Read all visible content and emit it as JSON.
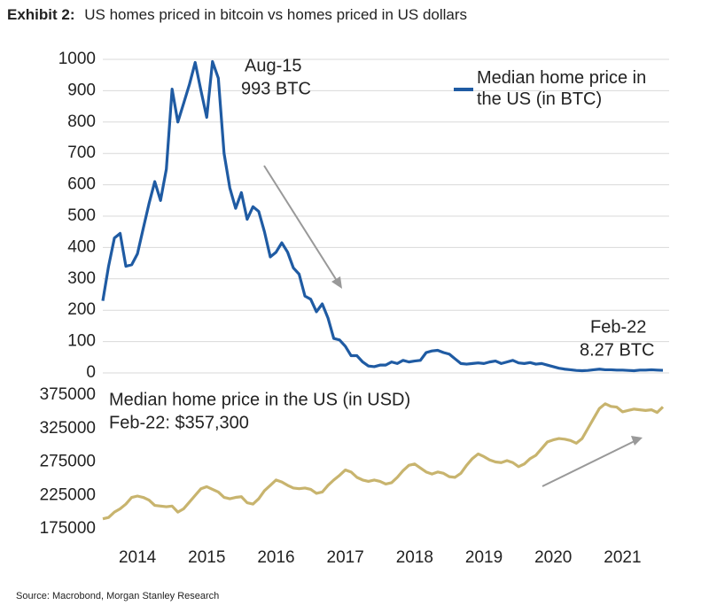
{
  "chart_data": {
    "type": "line",
    "title_prefix": "Exhibit 2:",
    "title": "US homes priced in bitcoin vs homes priced in US dollars",
    "source": "Source: Macrobond, Morgan Stanley Research",
    "x": [
      2014,
      2014.083,
      2014.167,
      2014.25,
      2014.333,
      2014.417,
      2014.5,
      2014.583,
      2014.667,
      2014.75,
      2014.833,
      2014.917,
      2015,
      2015.083,
      2015.167,
      2015.25,
      2015.333,
      2015.417,
      2015.5,
      2015.583,
      2015.667,
      2015.75,
      2015.833,
      2015.917,
      2016,
      2016.083,
      2016.167,
      2016.25,
      2016.333,
      2016.417,
      2016.5,
      2016.583,
      2016.667,
      2016.75,
      2016.833,
      2016.917,
      2017,
      2017.083,
      2017.167,
      2017.25,
      2017.333,
      2017.417,
      2017.5,
      2017.583,
      2017.667,
      2017.75,
      2017.833,
      2017.917,
      2018,
      2018.083,
      2018.167,
      2018.25,
      2018.333,
      2018.417,
      2018.5,
      2018.583,
      2018.667,
      2018.75,
      2018.833,
      2018.917,
      2019,
      2019.083,
      2019.167,
      2019.25,
      2019.333,
      2019.417,
      2019.5,
      2019.583,
      2019.667,
      2019.75,
      2019.833,
      2019.917,
      2020,
      2020.083,
      2020.167,
      2020.25,
      2020.333,
      2020.417,
      2020.5,
      2020.583,
      2020.667,
      2020.75,
      2020.833,
      2020.917,
      2021,
      2021.083,
      2021.167,
      2021.25,
      2021.333,
      2021.417,
      2021.5,
      2021.583,
      2021.667,
      2021.75,
      2021.833,
      2021.917,
      2022,
      2022.083
    ],
    "xlim": [
      2014,
      2022.083
    ],
    "xticks": [
      {
        "value": 2014.5,
        "label": "2014"
      },
      {
        "value": 2015.5,
        "label": "2015"
      },
      {
        "value": 2016.5,
        "label": "2016"
      },
      {
        "value": 2017.5,
        "label": "2017"
      },
      {
        "value": 2018.5,
        "label": "2018"
      },
      {
        "value": 2019.5,
        "label": "2019"
      },
      {
        "value": 2020.5,
        "label": "2020"
      },
      {
        "value": 2021.5,
        "label": "2021"
      }
    ],
    "ylim": [
      0,
      1000
    ],
    "yticks": [
      0,
      100,
      200,
      300,
      400,
      500,
      600,
      700,
      800,
      900,
      1000
    ],
    "y2lim": [
      175000,
      375000
    ],
    "y2ticks": [
      175000,
      225000,
      275000,
      325000,
      375000
    ],
    "grid": true,
    "series": [
      {
        "name": "Median home price in the US (in BTC)",
        "color": "#1f5ba3",
        "axis": "y",
        "values": [
          230,
          340,
          430,
          445,
          340,
          345,
          380,
          460,
          540,
          610,
          550,
          650,
          905,
          800,
          860,
          920,
          990,
          900,
          815,
          993,
          940,
          700,
          590,
          525,
          575,
          490,
          530,
          515,
          450,
          370,
          385,
          415,
          385,
          335,
          315,
          245,
          235,
          195,
          220,
          175,
          110,
          105,
          85,
          55,
          55,
          35,
          22,
          20,
          25,
          25,
          35,
          30,
          40,
          35,
          38,
          40,
          65,
          70,
          72,
          65,
          60,
          45,
          30,
          28,
          30,
          32,
          30,
          35,
          38,
          30,
          35,
          40,
          32,
          30,
          33,
          28,
          30,
          25,
          20,
          15,
          12,
          10,
          8,
          7,
          8,
          10,
          12,
          10,
          10,
          9,
          9,
          8,
          7,
          9,
          9,
          10,
          9,
          8.27
        ]
      },
      {
        "name": "Median home price in the US (in USD)",
        "color": "#c8b46e",
        "axis": "y2",
        "values": [
          190000,
          192000,
          200000,
          205000,
          212000,
          222000,
          224000,
          222000,
          218000,
          210000,
          209000,
          208000,
          209000,
          200000,
          205000,
          215000,
          225000,
          235000,
          238000,
          234000,
          230000,
          222000,
          220000,
          222000,
          223000,
          214000,
          212000,
          220000,
          232000,
          240000,
          248000,
          245000,
          240000,
          236000,
          235000,
          236000,
          234000,
          228000,
          230000,
          240000,
          248000,
          255000,
          263000,
          260000,
          252000,
          248000,
          246000,
          248000,
          246000,
          242000,
          244000,
          252000,
          262000,
          270000,
          272000,
          266000,
          260000,
          257000,
          260000,
          258000,
          253000,
          252000,
          258000,
          270000,
          280000,
          287000,
          283000,
          278000,
          275000,
          274000,
          277000,
          274000,
          268000,
          272000,
          280000,
          285000,
          295000,
          305000,
          308000,
          310000,
          309000,
          307000,
          303000,
          310000,
          325000,
          340000,
          355000,
          362000,
          358000,
          357000,
          350000,
          352000,
          354000,
          353000,
          352000,
          353000,
          349000,
          357300
        ]
      }
    ],
    "annotations": [
      {
        "text": "Aug-15"
      },
      {
        "text": "993 BTC"
      },
      {
        "text": "Feb-22"
      },
      {
        "text": "8.27 BTC"
      },
      {
        "text": "Feb-22: $357,300"
      }
    ]
  }
}
